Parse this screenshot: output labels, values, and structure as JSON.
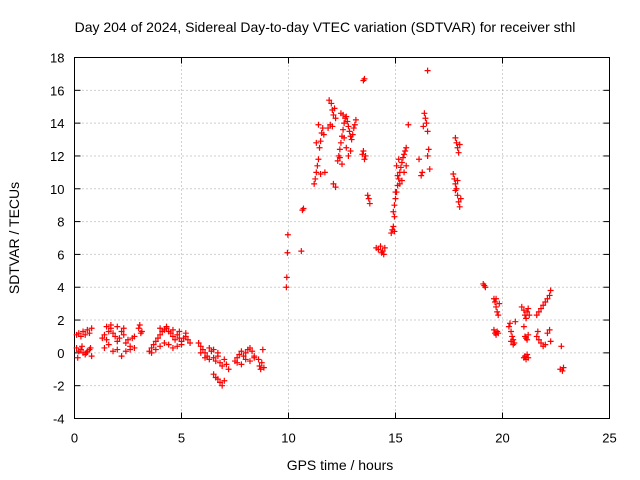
{
  "chart_data": {
    "type": "scatter",
    "title": "Day 204 of 2024, Sidereal Day-to-day VTEC variation (SDTVAR) for receiver sthl",
    "xlabel": "GPS time / hours",
    "ylabel": "SDTVAR / TECUs",
    "xlim": [
      0,
      25
    ],
    "ylim": [
      -4,
      18
    ],
    "xticks": [
      "0",
      "5",
      "10",
      "15",
      "20",
      "25"
    ],
    "yticks": [
      "-4",
      "-2",
      "0",
      "2",
      "4",
      "6",
      "8",
      "10",
      "12",
      "14",
      "16",
      "18"
    ],
    "grid": true,
    "marker": "+",
    "marker_color": "#ff0000",
    "series": [
      {
        "name": "SDTVAR",
        "points": [
          [
            0.1,
            1.1
          ],
          [
            0.2,
            1.2
          ],
          [
            0.3,
            1.0
          ],
          [
            0.4,
            1.3
          ],
          [
            0.5,
            1.1
          ],
          [
            0.6,
            1.4
          ],
          [
            0.7,
            1.2
          ],
          [
            0.8,
            1.5
          ],
          [
            0.1,
            0.3
          ],
          [
            0.2,
            0.1
          ],
          [
            0.3,
            0.2
          ],
          [
            0.4,
            0.0
          ],
          [
            0.5,
            -0.1
          ],
          [
            0.6,
            0.1
          ],
          [
            0.7,
            0.2
          ],
          [
            0.8,
            -0.2
          ],
          [
            0.15,
            -0.3
          ],
          [
            0.35,
            0.4
          ],
          [
            0.55,
            0.0
          ],
          [
            0.75,
            0.3
          ],
          [
            1.3,
            0.9
          ],
          [
            1.4,
            1.1
          ],
          [
            1.5,
            0.8
          ],
          [
            1.6,
            1.3
          ],
          [
            1.7,
            1.5
          ],
          [
            1.8,
            1.2
          ],
          [
            1.9,
            1.0
          ],
          [
            2.0,
            0.7
          ],
          [
            2.1,
            0.9
          ],
          [
            2.2,
            1.3
          ],
          [
            2.3,
            1.1
          ],
          [
            2.4,
            0.6
          ],
          [
            2.5,
            0.8
          ],
          [
            2.6,
            0.4
          ],
          [
            2.7,
            0.9
          ],
          [
            2.8,
            1.0
          ],
          [
            1.4,
            0.3
          ],
          [
            1.6,
            0.5
          ],
          [
            1.8,
            0.1
          ],
          [
            2.0,
            0.2
          ],
          [
            2.2,
            -0.2
          ],
          [
            2.4,
            0.1
          ],
          [
            2.6,
            0.2
          ],
          [
            2.8,
            0.3
          ],
          [
            1.5,
            1.6
          ],
          [
            1.7,
            1.7
          ],
          [
            2.0,
            1.6
          ],
          [
            2.3,
            1.5
          ],
          [
            3.0,
            1.5
          ],
          [
            3.05,
            1.7
          ],
          [
            3.1,
            1.2
          ],
          [
            3.15,
            1.3
          ],
          [
            3.5,
            0.1
          ],
          [
            3.6,
            0.3
          ],
          [
            3.7,
            0.5
          ],
          [
            3.8,
            0.7
          ],
          [
            3.9,
            0.9
          ],
          [
            4.0,
            1.1
          ],
          [
            4.1,
            1.3
          ],
          [
            4.2,
            1.4
          ],
          [
            4.3,
            1.5
          ],
          [
            4.4,
            1.3
          ],
          [
            4.5,
            1.2
          ],
          [
            4.6,
            1.0
          ],
          [
            4.7,
            0.8
          ],
          [
            4.8,
            1.1
          ],
          [
            4.9,
            0.9
          ],
          [
            5.0,
            0.7
          ],
          [
            5.1,
            0.9
          ],
          [
            5.2,
            1.0
          ],
          [
            5.3,
            0.8
          ],
          [
            5.4,
            0.6
          ],
          [
            3.6,
            0.0
          ],
          [
            3.8,
            0.2
          ],
          [
            4.0,
            0.4
          ],
          [
            4.2,
            0.6
          ],
          [
            4.4,
            0.5
          ],
          [
            4.6,
            0.3
          ],
          [
            4.8,
            0.4
          ],
          [
            5.0,
            0.5
          ],
          [
            4.0,
            1.5
          ],
          [
            4.3,
            1.6
          ],
          [
            4.6,
            1.4
          ],
          [
            4.9,
            1.3
          ],
          [
            5.2,
            1.2
          ],
          [
            5.8,
            0.6
          ],
          [
            5.9,
            0.4
          ],
          [
            6.0,
            0.2
          ],
          [
            6.1,
            0.0
          ],
          [
            6.2,
            -0.2
          ],
          [
            6.3,
            0.3
          ],
          [
            6.4,
            0.1
          ],
          [
            6.5,
            -0.3
          ],
          [
            6.6,
            -0.5
          ],
          [
            6.7,
            -0.2
          ],
          [
            6.8,
            -0.6
          ],
          [
            6.9,
            -0.8
          ],
          [
            7.0,
            -0.4
          ],
          [
            7.1,
            -0.7
          ],
          [
            7.2,
            -1.0
          ],
          [
            6.5,
            -1.3
          ],
          [
            6.6,
            -1.5
          ],
          [
            6.7,
            -1.6
          ],
          [
            6.8,
            -1.8
          ],
          [
            6.9,
            -2.0
          ],
          [
            7.0,
            -1.7
          ],
          [
            5.9,
            0.0
          ],
          [
            6.1,
            -0.3
          ],
          [
            6.3,
            -0.4
          ],
          [
            6.5,
            0.2
          ],
          [
            6.7,
            0.0
          ],
          [
            7.5,
            -0.5
          ],
          [
            7.6,
            -0.3
          ],
          [
            7.7,
            -0.1
          ],
          [
            7.8,
            0.1
          ],
          [
            7.9,
            -0.2
          ],
          [
            8.0,
            0.0
          ],
          [
            8.1,
            0.2
          ],
          [
            8.2,
            0.3
          ],
          [
            8.3,
            0.1
          ],
          [
            8.4,
            -0.2
          ],
          [
            7.6,
            -0.6
          ],
          [
            7.8,
            -0.7
          ],
          [
            8.0,
            -0.4
          ],
          [
            8.2,
            -0.5
          ],
          [
            8.4,
            -0.3
          ],
          [
            8.6,
            -0.4
          ],
          [
            8.65,
            -0.8
          ],
          [
            8.7,
            -1.0
          ],
          [
            8.75,
            -0.6
          ],
          [
            8.8,
            0.2
          ],
          [
            8.85,
            -0.9
          ],
          [
            9.9,
            4.0
          ],
          [
            9.92,
            4.6
          ],
          [
            9.95,
            6.1
          ],
          [
            9.97,
            7.2
          ],
          [
            10.6,
            6.2
          ],
          [
            10.65,
            8.7
          ],
          [
            10.7,
            8.8
          ],
          [
            11.2,
            10.3
          ],
          [
            11.25,
            10.6
          ],
          [
            11.3,
            11.0
          ],
          [
            11.35,
            11.4
          ],
          [
            11.4,
            11.8
          ],
          [
            11.45,
            12.5
          ],
          [
            11.5,
            12.9
          ],
          [
            11.55,
            13.4
          ],
          [
            11.6,
            13.7
          ],
          [
            11.65,
            13.3
          ],
          [
            11.3,
            12.8
          ],
          [
            11.4,
            13.9
          ],
          [
            11.7,
            11.0
          ],
          [
            11.5,
            10.9
          ],
          [
            11.9,
            15.4
          ],
          [
            12.0,
            15.2
          ],
          [
            12.05,
            14.8
          ],
          [
            12.1,
            14.5
          ],
          [
            12.15,
            14.9
          ],
          [
            12.2,
            14.3
          ],
          [
            12.05,
            13.8
          ],
          [
            11.95,
            13.9
          ],
          [
            12.1,
            10.3
          ],
          [
            12.2,
            10.1
          ],
          [
            11.85,
            13.7
          ],
          [
            12.3,
            11.7
          ],
          [
            12.35,
            12.0
          ],
          [
            12.4,
            12.4
          ],
          [
            12.45,
            12.8
          ],
          [
            12.5,
            13.2
          ],
          [
            12.55,
            13.6
          ],
          [
            12.6,
            14.0
          ],
          [
            12.65,
            14.3
          ],
          [
            12.7,
            14.4
          ],
          [
            12.75,
            14.1
          ],
          [
            12.8,
            13.8
          ],
          [
            12.85,
            13.5
          ],
          [
            12.9,
            13.2
          ],
          [
            12.95,
            13.0
          ],
          [
            13.0,
            13.3
          ],
          [
            13.05,
            13.7
          ],
          [
            12.45,
            14.6
          ],
          [
            12.55,
            14.5
          ],
          [
            12.6,
            13.1
          ],
          [
            12.7,
            12.5
          ],
          [
            12.8,
            12.0
          ],
          [
            12.9,
            12.3
          ],
          [
            12.4,
            11.9
          ],
          [
            12.5,
            11.5
          ],
          [
            13.1,
            13.9
          ],
          [
            13.15,
            14.2
          ],
          [
            13.5,
            16.6
          ],
          [
            13.55,
            16.7
          ],
          [
            13.45,
            12.1
          ],
          [
            13.5,
            12.3
          ],
          [
            13.55,
            11.8
          ],
          [
            13.6,
            12.0
          ],
          [
            13.7,
            9.6
          ],
          [
            13.75,
            9.4
          ],
          [
            13.8,
            9.1
          ],
          [
            14.1,
            6.4
          ],
          [
            14.2,
            6.3
          ],
          [
            14.3,
            6.5
          ],
          [
            14.4,
            6.2
          ],
          [
            14.5,
            6.4
          ],
          [
            14.45,
            6.0
          ],
          [
            14.35,
            6.1
          ],
          [
            14.8,
            7.3
          ],
          [
            14.85,
            7.5
          ],
          [
            14.9,
            7.7
          ],
          [
            14.95,
            7.4
          ],
          [
            14.9,
            8.6
          ],
          [
            14.95,
            9.0
          ],
          [
            15.0,
            9.4
          ],
          [
            15.05,
            9.8
          ],
          [
            15.1,
            10.2
          ],
          [
            15.15,
            10.6
          ],
          [
            15.2,
            11.0
          ],
          [
            15.25,
            11.3
          ],
          [
            15.3,
            11.6
          ],
          [
            15.35,
            11.9
          ],
          [
            15.4,
            12.1
          ],
          [
            15.45,
            12.3
          ],
          [
            15.0,
            9.8
          ],
          [
            15.1,
            10.8
          ],
          [
            15.2,
            10.3
          ],
          [
            15.3,
            10.5
          ],
          [
            15.4,
            11.0
          ],
          [
            15.5,
            11.4
          ],
          [
            15.05,
            11.4
          ],
          [
            15.15,
            11.8
          ],
          [
            14.95,
            8.3
          ],
          [
            15.6,
            13.9
          ],
          [
            15.5,
            12.5
          ],
          [
            16.1,
            11.8
          ],
          [
            16.2,
            10.8
          ],
          [
            16.25,
            11.0
          ],
          [
            16.3,
            13.8
          ],
          [
            16.35,
            14.6
          ],
          [
            16.4,
            14.3
          ],
          [
            16.45,
            14.0
          ],
          [
            16.5,
            13.5
          ],
          [
            16.5,
            17.2
          ],
          [
            16.55,
            12.4
          ],
          [
            16.6,
            11.2
          ],
          [
            16.5,
            12.0
          ],
          [
            17.8,
            13.1
          ],
          [
            17.85,
            12.8
          ],
          [
            17.9,
            12.5
          ],
          [
            17.95,
            12.2
          ],
          [
            18.0,
            12.7
          ],
          [
            17.7,
            10.9
          ],
          [
            17.75,
            10.6
          ],
          [
            17.8,
            10.3
          ],
          [
            17.85,
            10.0
          ],
          [
            17.9,
            9.6
          ],
          [
            17.95,
            9.2
          ],
          [
            18.0,
            8.9
          ],
          [
            18.05,
            9.4
          ],
          [
            17.8,
            9.9
          ],
          [
            17.9,
            10.5
          ],
          [
            19.1,
            4.2
          ],
          [
            19.15,
            4.1
          ],
          [
            19.2,
            4.0
          ],
          [
            19.6,
            3.3
          ],
          [
            19.65,
            3.1
          ],
          [
            19.7,
            2.8
          ],
          [
            19.75,
            2.5
          ],
          [
            19.8,
            2.3
          ],
          [
            19.85,
            3.0
          ],
          [
            19.7,
            3.3
          ],
          [
            19.6,
            1.4
          ],
          [
            19.65,
            1.2
          ],
          [
            19.7,
            1.1
          ],
          [
            19.75,
            1.3
          ],
          [
            19.8,
            1.2
          ],
          [
            20.3,
            1.6
          ],
          [
            20.35,
            1.8
          ],
          [
            20.4,
            1.3
          ],
          [
            20.45,
            1.0
          ],
          [
            20.5,
            0.8
          ],
          [
            20.55,
            0.6
          ],
          [
            20.6,
            1.9
          ],
          [
            20.4,
            0.7
          ],
          [
            20.5,
            0.5
          ],
          [
            20.9,
            2.8
          ],
          [
            21.0,
            2.6
          ],
          [
            21.05,
            2.3
          ],
          [
            21.1,
            2.1
          ],
          [
            21.15,
            2.5
          ],
          [
            21.2,
            2.7
          ],
          [
            21.25,
            2.3
          ],
          [
            21.0,
            1.6
          ],
          [
            21.05,
            1.0
          ],
          [
            21.1,
            0.9
          ],
          [
            21.15,
            0.8
          ],
          [
            21.2,
            1.1
          ],
          [
            21.0,
            -0.3
          ],
          [
            21.05,
            -0.2
          ],
          [
            21.1,
            -0.4
          ],
          [
            21.15,
            -0.1
          ],
          [
            21.2,
            -0.3
          ],
          [
            21.6,
            2.3
          ],
          [
            21.7,
            2.5
          ],
          [
            21.8,
            2.7
          ],
          [
            21.9,
            2.9
          ],
          [
            22.0,
            3.1
          ],
          [
            22.1,
            3.3
          ],
          [
            22.2,
            3.5
          ],
          [
            22.25,
            3.8
          ],
          [
            21.6,
            1.0
          ],
          [
            21.7,
            0.8
          ],
          [
            21.8,
            0.6
          ],
          [
            21.9,
            0.4
          ],
          [
            21.65,
            1.3
          ],
          [
            22.0,
            0.5
          ],
          [
            22.1,
            1.2
          ],
          [
            22.2,
            1.4
          ],
          [
            22.25,
            0.7
          ],
          [
            22.7,
            -1.0
          ],
          [
            22.8,
            -1.1
          ],
          [
            22.85,
            -0.9
          ],
          [
            22.75,
            0.4
          ]
        ]
      }
    ]
  }
}
